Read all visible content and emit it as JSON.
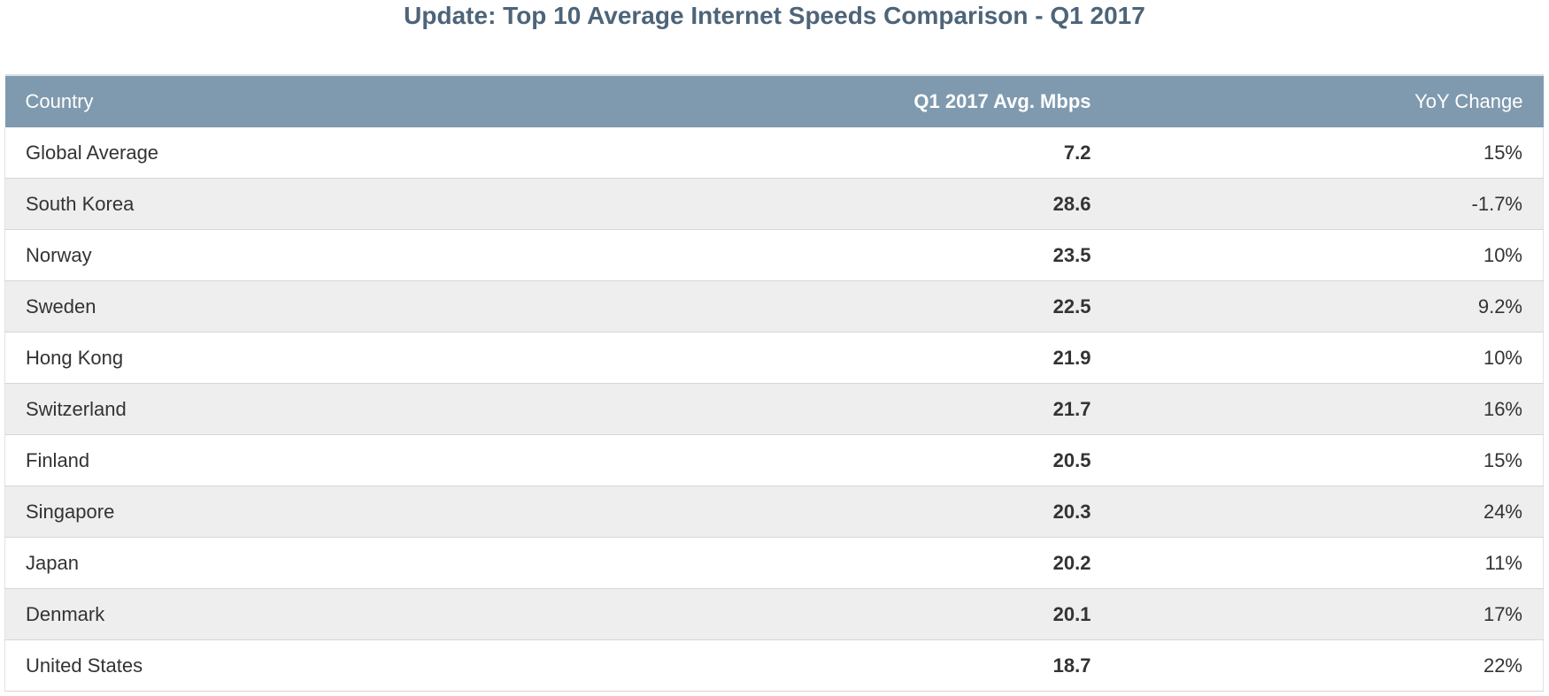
{
  "title": "Update: Top 10 Average Internet Speeds Comparison - Q1 2017",
  "table": {
    "columns": [
      "Country",
      "Q1 2017 Avg. Mbps",
      "YoY Change"
    ],
    "rows": [
      {
        "country": "Global Average",
        "mbps": "7.2",
        "yoy": "15%"
      },
      {
        "country": "South Korea",
        "mbps": "28.6",
        "yoy": "-1.7%"
      },
      {
        "country": "Norway",
        "mbps": "23.5",
        "yoy": "10%"
      },
      {
        "country": "Sweden",
        "mbps": "22.5",
        "yoy": "9.2%"
      },
      {
        "country": "Hong Kong",
        "mbps": "21.9",
        "yoy": "10%"
      },
      {
        "country": "Switzerland",
        "mbps": "21.7",
        "yoy": "16%"
      },
      {
        "country": "Finland",
        "mbps": "20.5",
        "yoy": "15%"
      },
      {
        "country": "Singapore",
        "mbps": "20.3",
        "yoy": "24%"
      },
      {
        "country": "Japan",
        "mbps": "20.2",
        "yoy": "11%"
      },
      {
        "country": "Denmark",
        "mbps": "20.1",
        "yoy": "17%"
      },
      {
        "country": "United States",
        "mbps": "18.7",
        "yoy": "22%"
      }
    ]
  },
  "colors": {
    "title": "#4d6479",
    "header_background": "#7f9aae",
    "header_text": "#ffffff",
    "row_alt_background": "#eeeeee"
  }
}
